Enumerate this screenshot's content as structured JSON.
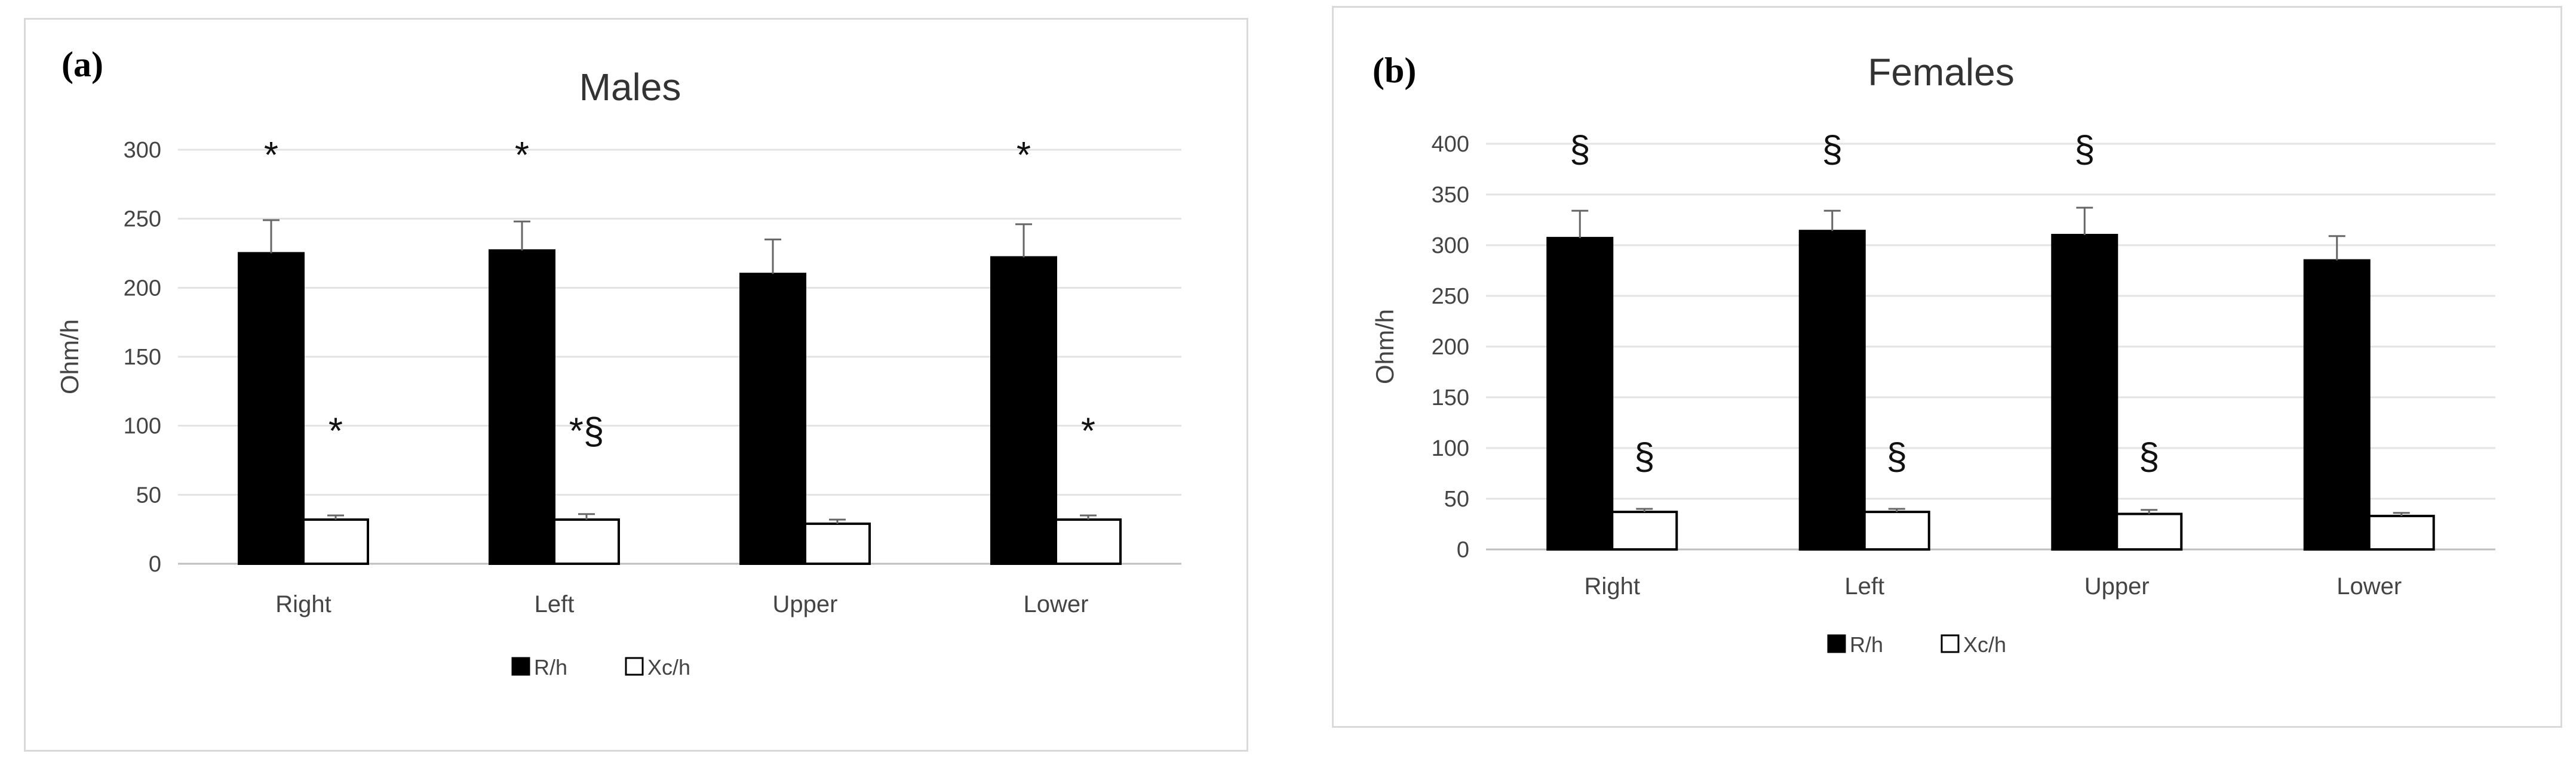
{
  "panels": [
    {
      "id": "a",
      "tag": "(a)",
      "chart_data": {
        "type": "bar",
        "title": "Males",
        "ylabel": "Ohm/h",
        "xlabel": "",
        "categories": [
          "Right",
          "Left",
          "Upper",
          "Lower"
        ],
        "ylim": [
          0,
          300
        ],
        "yticks": [
          0,
          50,
          100,
          150,
          200,
          250,
          300
        ],
        "grid": true,
        "legend": "bottom",
        "series": [
          {
            "name": "R/h",
            "values": [
              225,
              227,
              210,
              222
            ],
            "errors": [
              24,
              21,
              25,
              24
            ],
            "color": "#000000"
          },
          {
            "name": "Xc/h",
            "values": [
              32,
              32,
              29,
              32
            ],
            "errors": [
              3,
              4,
              3,
              3
            ],
            "color": "#ffffff"
          }
        ],
        "annotations": [
          {
            "category": "Right",
            "series": "R/h",
            "text": "*",
            "y": 300
          },
          {
            "category": "Left",
            "series": "R/h",
            "text": "*",
            "y": 300
          },
          {
            "category": "Lower",
            "series": "R/h",
            "text": "*",
            "y": 300
          },
          {
            "category": "Right",
            "series": "Xc/h",
            "text": "*",
            "y": 100
          },
          {
            "category": "Left",
            "series": "Xc/h",
            "text": "*§",
            "y": 100
          },
          {
            "category": "Lower",
            "series": "Xc/h",
            "text": "*",
            "y": 100
          }
        ]
      }
    },
    {
      "id": "b",
      "tag": "(b)",
      "chart_data": {
        "type": "bar",
        "title": "Females",
        "ylabel": "Ohm/h",
        "xlabel": "",
        "categories": [
          "Right",
          "Left",
          "Upper",
          "Lower"
        ],
        "ylim": [
          0,
          400
        ],
        "yticks": [
          0,
          50,
          100,
          150,
          200,
          250,
          300,
          350,
          400
        ],
        "grid": true,
        "legend": "bottom",
        "series": [
          {
            "name": "R/h",
            "values": [
              307,
              314,
              310,
              285
            ],
            "errors": [
              27,
              20,
              27,
              24
            ],
            "color": "#000000"
          },
          {
            "name": "Xc/h",
            "values": [
              37,
              37,
              35,
              33
            ],
            "errors": [
              3,
              3,
              4,
              3
            ],
            "color": "#ffffff"
          }
        ],
        "annotations": [
          {
            "category": "Right",
            "series": "R/h",
            "text": "§",
            "y": 400
          },
          {
            "category": "Left",
            "series": "R/h",
            "text": "§",
            "y": 400
          },
          {
            "category": "Upper",
            "series": "R/h",
            "text": "§",
            "y": 400
          },
          {
            "category": "Right",
            "series": "Xc/h",
            "text": "§",
            "y": 97
          },
          {
            "category": "Left",
            "series": "Xc/h",
            "text": "§",
            "y": 97
          },
          {
            "category": "Upper",
            "series": "Xc/h",
            "text": "§",
            "y": 97
          }
        ]
      }
    }
  ]
}
